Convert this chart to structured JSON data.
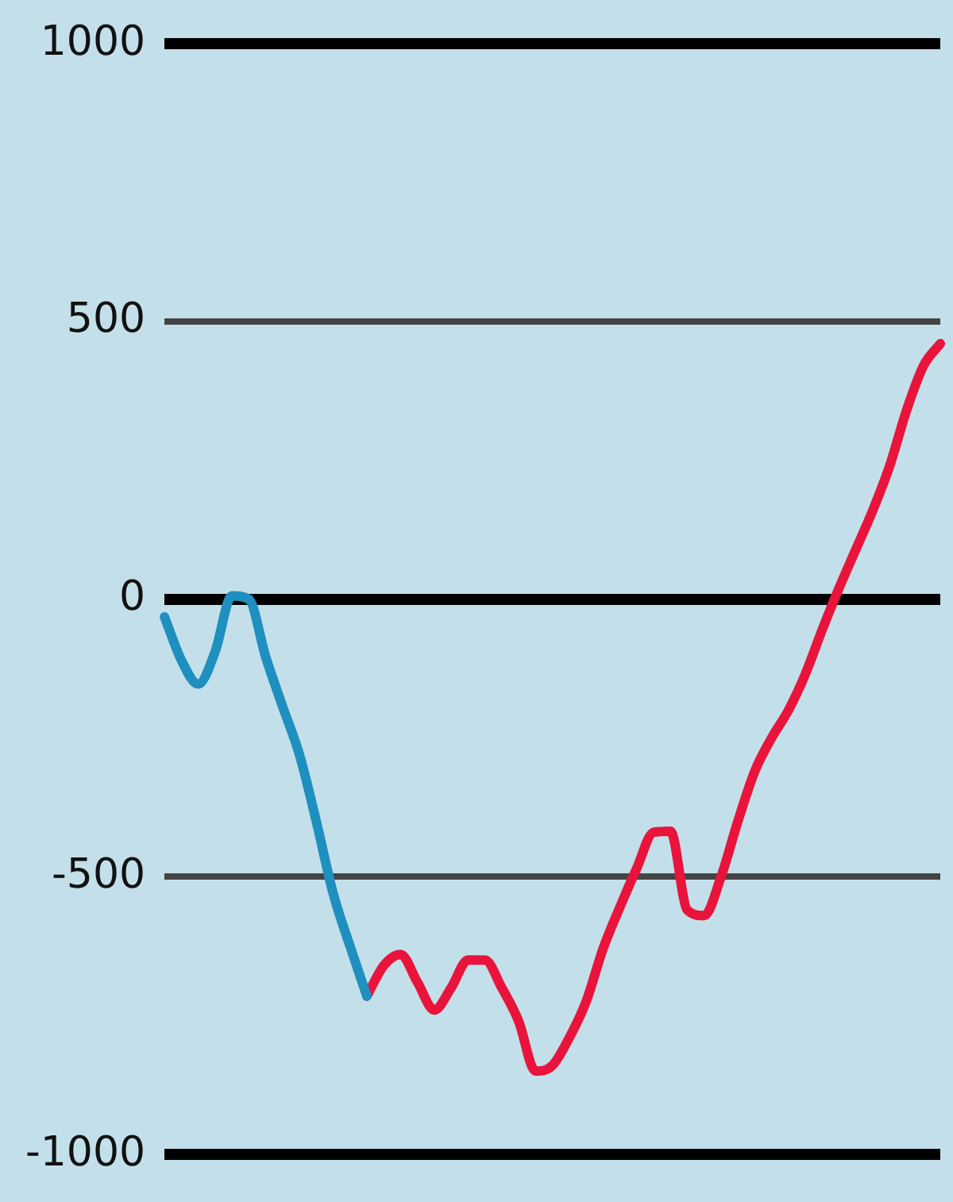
{
  "chart_data": {
    "type": "line",
    "categories": [
      null,
      null,
      null,
      null,
      null,
      null,
      null,
      null,
      null,
      null,
      null,
      null,
      null,
      null,
      null,
      null,
      null,
      null,
      null,
      null,
      null,
      null,
      null,
      null,
      null,
      null,
      null,
      null,
      null,
      null,
      null,
      null,
      null,
      null,
      null,
      null,
      null,
      null,
      null,
      null,
      null,
      null,
      null,
      null,
      null,
      null,
      null
    ],
    "series": [
      {
        "color": "#1f8fc0",
        "values": [
          -32,
          -110,
          -153,
          -95,
          6,
          0,
          -104,
          -193,
          -280,
          -400,
          -530,
          -625,
          -715,
          null,
          null,
          null,
          null,
          null,
          null,
          null,
          null,
          null,
          null,
          null,
          null,
          null,
          null,
          null,
          null,
          null,
          null,
          null,
          null,
          null,
          null,
          null,
          null,
          null,
          null,
          null,
          null,
          null,
          null,
          null,
          null,
          null,
          null
        ]
      },
      {
        "color": "#e8143c",
        "values": [
          null,
          null,
          null,
          null,
          null,
          null,
          null,
          null,
          null,
          null,
          null,
          null,
          -715,
          -660,
          -640,
          -690,
          -740,
          -700,
          -650,
          -650,
          -700,
          -760,
          -850,
          -840,
          -790,
          -725,
          -630,
          -555,
          -485,
          -420,
          -418,
          -560,
          -570,
          -500,
          -400,
          -310,
          -250,
          -200,
          -135,
          -55,
          20,
          90,
          160,
          240,
          340,
          420,
          460
        ]
      }
    ],
    "ylim": [
      -1000,
      1000
    ],
    "yticks": [
      -1000,
      -500,
      0,
      500,
      1000
    ],
    "grid": "y",
    "legend": false,
    "marker": "none",
    "line_style": "solid",
    "tick_labels": "y"
  }
}
